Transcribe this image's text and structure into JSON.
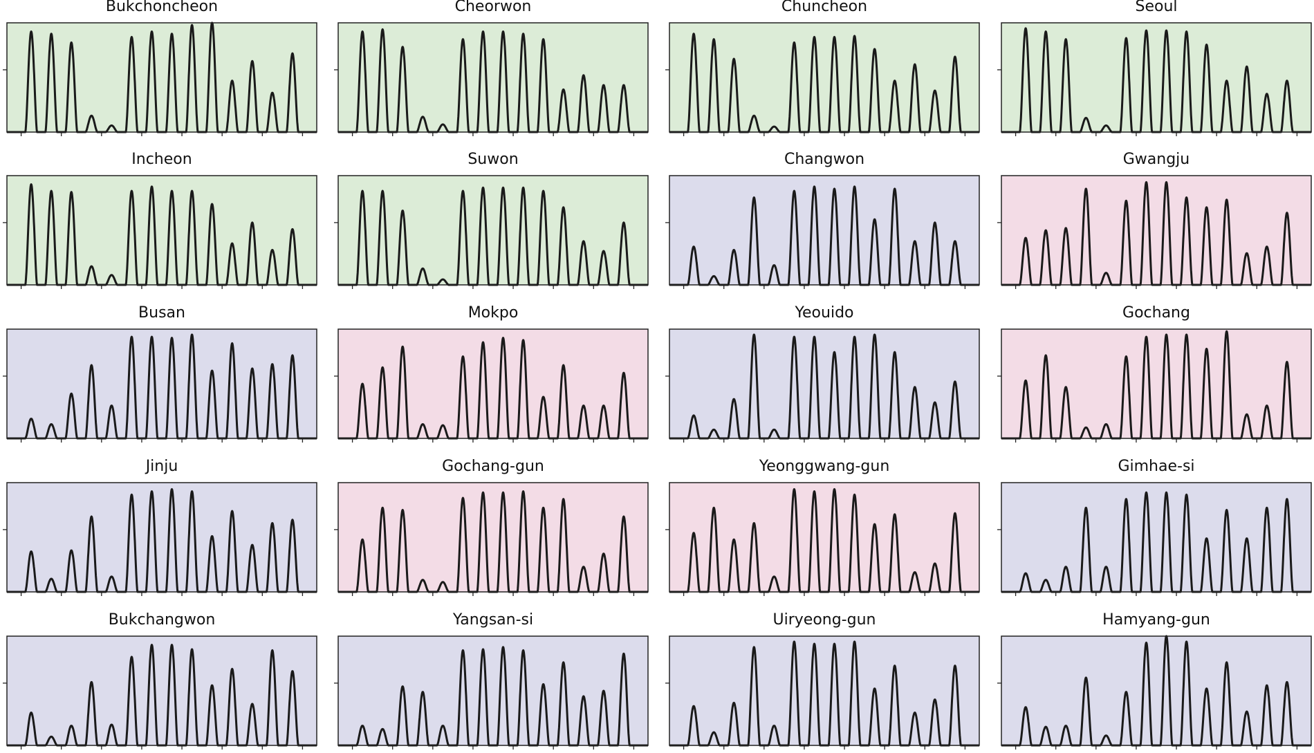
{
  "chart_data": [
    {
      "type": "line",
      "title": "Bukchoncheon",
      "background": "#dcecd7",
      "values": [
        0.92,
        0.9,
        0.82,
        0.15,
        0.06,
        0.87,
        0.92,
        0.9,
        0.98,
        1.0,
        0.47,
        0.65,
        0.36,
        0.72
      ]
    },
    {
      "type": "line",
      "title": "Cheorwon",
      "background": "#dcecd7",
      "values": [
        0.92,
        0.94,
        0.78,
        0.14,
        0.07,
        0.85,
        0.92,
        0.92,
        0.9,
        0.85,
        0.39,
        0.52,
        0.43,
        0.43
      ]
    },
    {
      "type": "line",
      "title": "Chuncheon",
      "background": "#dcecd7",
      "values": [
        0.9,
        0.85,
        0.67,
        0.15,
        0.05,
        0.82,
        0.87,
        0.87,
        0.88,
        0.76,
        0.47,
        0.62,
        0.38,
        0.69
      ]
    },
    {
      "type": "line",
      "title": "Seoul",
      "background": "#dcecd7",
      "values": [
        0.95,
        0.92,
        0.85,
        0.13,
        0.06,
        0.86,
        0.93,
        0.93,
        0.92,
        0.8,
        0.47,
        0.6,
        0.35,
        0.47
      ]
    },
    {
      "type": "line",
      "title": "Incheon",
      "background": "#dcecd7",
      "values": [
        0.92,
        0.86,
        0.85,
        0.17,
        0.09,
        0.86,
        0.9,
        0.86,
        0.86,
        0.74,
        0.38,
        0.57,
        0.32,
        0.51
      ]
    },
    {
      "type": "line",
      "title": "Suwon",
      "background": "#dcecd7",
      "values": [
        0.86,
        0.86,
        0.68,
        0.15,
        0.05,
        0.86,
        0.89,
        0.89,
        0.89,
        0.86,
        0.71,
        0.4,
        0.31,
        0.57
      ]
    },
    {
      "type": "line",
      "title": "Changwon",
      "background": "#dcdcec",
      "values": [
        0.35,
        0.08,
        0.32,
        0.8,
        0.18,
        0.86,
        0.9,
        0.88,
        0.9,
        0.6,
        0.88,
        0.4,
        0.57,
        0.4
      ]
    },
    {
      "type": "line",
      "title": "Gwangju",
      "background": "#f3dce6",
      "values": [
        0.43,
        0.5,
        0.52,
        0.88,
        0.11,
        0.77,
        0.94,
        0.94,
        0.8,
        0.71,
        0.78,
        0.29,
        0.35,
        0.66
      ]
    },
    {
      "type": "line",
      "title": "Busan",
      "background": "#dcdcec",
      "values": [
        0.18,
        0.13,
        0.41,
        0.67,
        0.3,
        0.93,
        0.93,
        0.92,
        0.95,
        0.62,
        0.87,
        0.64,
        0.68,
        0.76
      ]
    },
    {
      "type": "line",
      "title": "Mokpo",
      "background": "#f3dce6",
      "values": [
        0.5,
        0.65,
        0.84,
        0.13,
        0.12,
        0.75,
        0.88,
        0.92,
        0.9,
        0.38,
        0.67,
        0.3,
        0.3,
        0.6
      ]
    },
    {
      "type": "line",
      "title": "Yeouido",
      "background": "#dcdcec",
      "values": [
        0.21,
        0.08,
        0.36,
        0.95,
        0.08,
        0.93,
        0.93,
        0.79,
        0.93,
        0.95,
        0.79,
        0.47,
        0.33,
        0.52
      ]
    },
    {
      "type": "line",
      "title": "Gochang",
      "background": "#f3dce6",
      "values": [
        0.53,
        0.76,
        0.47,
        0.1,
        0.13,
        0.75,
        0.93,
        0.95,
        0.95,
        0.82,
        0.98,
        0.22,
        0.3,
        0.7
      ]
    },
    {
      "type": "line",
      "title": "Jinju",
      "background": "#dcdcec",
      "values": [
        0.37,
        0.12,
        0.38,
        0.69,
        0.14,
        0.89,
        0.92,
        0.94,
        0.92,
        0.51,
        0.74,
        0.43,
        0.63,
        0.66
      ]
    },
    {
      "type": "line",
      "title": "Gochang-gun",
      "background": "#f3dce6",
      "values": [
        0.48,
        0.77,
        0.75,
        0.11,
        0.09,
        0.86,
        0.91,
        0.91,
        0.92,
        0.77,
        0.85,
        0.23,
        0.35,
        0.69
      ]
    },
    {
      "type": "line",
      "title": "Yeonggwang-gun",
      "background": "#f3dce6",
      "values": [
        0.54,
        0.77,
        0.48,
        0.63,
        0.14,
        0.94,
        0.92,
        0.94,
        0.89,
        0.62,
        0.71,
        0.18,
        0.26,
        0.72
      ]
    },
    {
      "type": "line",
      "title": "Gimhae-si",
      "background": "#dcdcec",
      "values": [
        0.17,
        0.11,
        0.23,
        0.77,
        0.23,
        0.85,
        0.91,
        0.91,
        0.89,
        0.49,
        0.75,
        0.49,
        0.77,
        0.85
      ]
    },
    {
      "type": "line",
      "title": "Bukchangwon",
      "background": "#dcdcec",
      "values": [
        0.3,
        0.08,
        0.18,
        0.58,
        0.19,
        0.81,
        0.92,
        0.92,
        0.88,
        0.55,
        0.7,
        0.38,
        0.87,
        0.68
      ]
    },
    {
      "type": "line",
      "title": "Yangsan-si",
      "background": "#dcdcec",
      "values": [
        0.18,
        0.15,
        0.54,
        0.49,
        0.18,
        0.87,
        0.88,
        0.9,
        0.87,
        0.56,
        0.76,
        0.45,
        0.5,
        0.84
      ]
    },
    {
      "type": "line",
      "title": "Uiryeong-gun",
      "background": "#dcdcec",
      "values": [
        0.36,
        0.12,
        0.39,
        0.9,
        0.18,
        0.95,
        0.93,
        0.93,
        0.95,
        0.52,
        0.73,
        0.3,
        0.42,
        0.73
      ]
    },
    {
      "type": "line",
      "title": "Hamyang-gun",
      "background": "#dcdcec",
      "values": [
        0.35,
        0.17,
        0.18,
        0.62,
        0.09,
        0.49,
        0.94,
        1.0,
        0.95,
        0.52,
        0.76,
        0.31,
        0.55,
        0.58
      ]
    }
  ],
  "axes": {
    "line_color": "#1a1a1a",
    "xlim_hours": [
      -17,
      353
    ],
    "xticks_hours": [
      0,
      48,
      96,
      144,
      192,
      240,
      288,
      336
    ],
    "ylim": [
      0,
      1
    ],
    "yticks": [
      0.57
    ],
    "tick_labels_shown": false,
    "grid": false
  }
}
